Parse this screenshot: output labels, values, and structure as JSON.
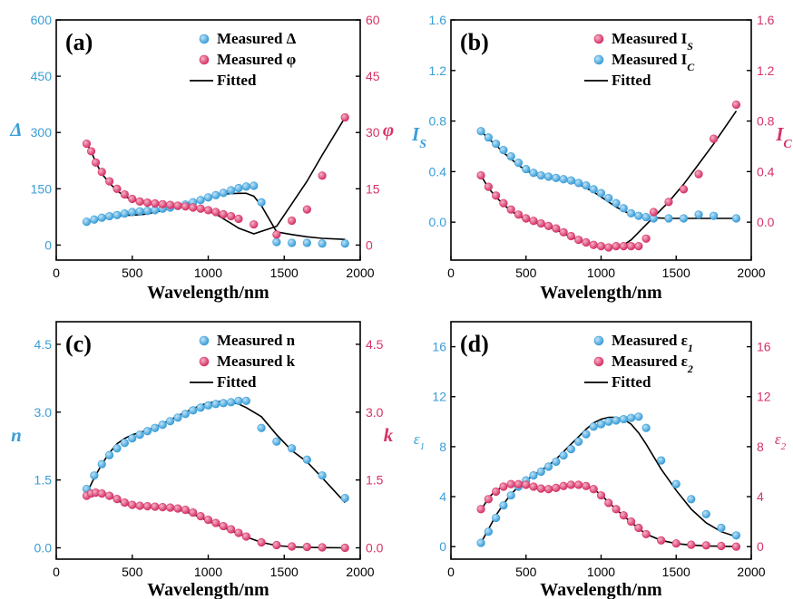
{
  "colors": {
    "blue": "#3a9ed8",
    "pink": "#d63366",
    "fit": "#000000"
  },
  "chart_data": [
    {
      "panel_label": "(a)",
      "type": "scatter",
      "xlabel": "Wavelength/nm",
      "xlim": [
        0,
        2000
      ],
      "x_ticks": [
        "0",
        "500",
        "1000",
        "1500",
        "2000"
      ],
      "ylabel_left": "Δ",
      "ylabel_right": "φ",
      "left_axis": {
        "lim": [
          -40,
          600
        ],
        "ticks": [
          "0",
          "150",
          "300",
          "450",
          "600"
        ]
      },
      "right_axis": {
        "lim": [
          -4,
          60
        ],
        "ticks": [
          "0",
          "15",
          "30",
          "45",
          "60"
        ]
      },
      "legend": [
        {
          "marker": "blue",
          "text": "Measured Δ"
        },
        {
          "marker": "pink",
          "text": "Measured φ"
        },
        {
          "marker": "line",
          "text": "Fitted"
        }
      ],
      "series": [
        {
          "name": "Measured Δ",
          "axis": "left",
          "color": "blue",
          "x": [
            200,
            250,
            300,
            350,
            400,
            450,
            500,
            550,
            600,
            650,
            700,
            750,
            800,
            850,
            900,
            950,
            1000,
            1050,
            1100,
            1150,
            1200,
            1250,
            1300,
            1350,
            1450,
            1550,
            1650,
            1750,
            1900
          ],
          "y": [
            62,
            68,
            73,
            77,
            80,
            84,
            88,
            90,
            91,
            93,
            97,
            100,
            104,
            108,
            114,
            120,
            127,
            133,
            139,
            146,
            152,
            156,
            158,
            114,
            8,
            6,
            6,
            4,
            4
          ],
          "fit_y": [
            62,
            66,
            70,
            74,
            77,
            79,
            80,
            81,
            83,
            88,
            92,
            98,
            103,
            110,
            116,
            122,
            128,
            133,
            136,
            137,
            138,
            138,
            130,
            105,
            35,
            28,
            22,
            18,
            15
          ]
        },
        {
          "name": "Measured φ",
          "axis": "right",
          "color": "pink",
          "x": [
            200,
            230,
            260,
            300,
            350,
            400,
            450,
            500,
            550,
            600,
            650,
            700,
            750,
            800,
            850,
            900,
            950,
            1000,
            1050,
            1100,
            1150,
            1200,
            1300,
            1450,
            1550,
            1650,
            1750,
            1900
          ],
          "y": [
            27,
            25,
            22,
            19.5,
            17,
            15,
            13.5,
            12.3,
            11.6,
            11.3,
            11.1,
            10.9,
            10.7,
            10.5,
            10.3,
            10,
            9.7,
            9.3,
            8.8,
            8.2,
            7.7,
            7,
            5.5,
            2.8,
            6.5,
            9.5,
            18.5,
            34
          ],
          "fit_y": [
            27,
            25,
            22,
            19,
            16.5,
            14.5,
            13,
            12,
            11.5,
            11.3,
            11.1,
            10.9,
            10.7,
            10.5,
            10.3,
            10,
            9.6,
            9,
            8.3,
            7,
            5.8,
            4.5,
            3,
            5,
            11,
            17,
            24,
            34
          ]
        }
      ]
    },
    {
      "panel_label": "(b)",
      "type": "scatter",
      "xlabel": "Wavelength/nm",
      "xlim": [
        0,
        2000
      ],
      "x_ticks": [
        "0",
        "500",
        "1000",
        "1500",
        "2000"
      ],
      "ylabel_left": "I",
      "ylabel_left_sub": "S",
      "ylabel_right": "I",
      "ylabel_right_sub": "C",
      "left_axis": {
        "lim": [
          -0.3,
          1.6
        ],
        "ticks": [
          "0.0",
          "0.4",
          "0.8",
          "1.2",
          "1.6"
        ]
      },
      "right_axis": {
        "lim": [
          -0.3,
          1.6
        ],
        "ticks": [
          "0.0",
          "0.4",
          "0.8",
          "1.2",
          "1.6"
        ]
      },
      "legend": [
        {
          "marker": "pink",
          "text": "Measured I",
          "sub": "S"
        },
        {
          "marker": "blue",
          "text": "Measured I",
          "sub": "C"
        },
        {
          "marker": "line",
          "text": "Fitted"
        }
      ],
      "series": [
        {
          "name": "Measured I_C",
          "axis": "left",
          "color": "blue",
          "x": [
            200,
            250,
            300,
            350,
            400,
            450,
            500,
            550,
            600,
            650,
            700,
            750,
            800,
            850,
            900,
            950,
            1000,
            1050,
            1100,
            1150,
            1200,
            1250,
            1300,
            1350,
            1450,
            1550,
            1650,
            1750,
            1900
          ],
          "y": [
            0.72,
            0.67,
            0.62,
            0.57,
            0.52,
            0.47,
            0.42,
            0.39,
            0.37,
            0.36,
            0.35,
            0.34,
            0.33,
            0.31,
            0.29,
            0.26,
            0.23,
            0.19,
            0.15,
            0.11,
            0.07,
            0.05,
            0.04,
            0.03,
            0.03,
            0.03,
            0.06,
            0.05,
            0.03
          ],
          "fit_y": [
            0.72,
            0.66,
            0.61,
            0.55,
            0.5,
            0.45,
            0.41,
            0.38,
            0.36,
            0.35,
            0.34,
            0.33,
            0.32,
            0.3,
            0.27,
            0.24,
            0.2,
            0.16,
            0.12,
            0.09,
            0.06,
            0.05,
            0.04,
            0.035,
            0.03,
            0.03,
            0.03,
            0.03,
            0.03
          ]
        },
        {
          "name": "Measured I_S",
          "axis": "right",
          "color": "pink",
          "x": [
            200,
            250,
            300,
            350,
            400,
            450,
            500,
            550,
            600,
            650,
            700,
            750,
            800,
            850,
            900,
            950,
            1000,
            1050,
            1100,
            1150,
            1200,
            1250,
            1300,
            1350,
            1450,
            1550,
            1650,
            1750,
            1900
          ],
          "y": [
            0.37,
            0.28,
            0.21,
            0.15,
            0.1,
            0.06,
            0.03,
            0.01,
            -0.01,
            -0.03,
            -0.05,
            -0.08,
            -0.11,
            -0.14,
            -0.16,
            -0.18,
            -0.19,
            -0.2,
            -0.19,
            -0.19,
            -0.19,
            -0.19,
            -0.13,
            0.08,
            0.16,
            0.26,
            0.38,
            0.66,
            0.93
          ],
          "fit_y": [
            0.37,
            0.27,
            0.2,
            0.14,
            0.09,
            0.05,
            0.02,
            0.0,
            -0.02,
            -0.04,
            -0.06,
            -0.09,
            -0.12,
            -0.14,
            -0.16,
            -0.18,
            -0.19,
            -0.19,
            -0.19,
            -0.18,
            -0.14,
            -0.08,
            -0.02,
            0.04,
            0.16,
            0.3,
            0.46,
            0.62,
            0.88
          ]
        }
      ]
    },
    {
      "panel_label": "(c)",
      "type": "scatter",
      "xlabel": "Wavelength/nm",
      "xlim": [
        0,
        2000
      ],
      "x_ticks": [
        "0",
        "500",
        "1000",
        "1500",
        "2000"
      ],
      "ylabel_left": "n",
      "ylabel_right": "k",
      "left_axis": {
        "lim": [
          -0.25,
          5.0
        ],
        "ticks": [
          "0.0",
          "1.5",
          "3.0",
          "4.5"
        ]
      },
      "right_axis": {
        "lim": [
          -0.25,
          5.0
        ],
        "ticks": [
          "0.0",
          "1.5",
          "3.0",
          "4.5"
        ]
      },
      "legend": [
        {
          "marker": "blue",
          "text": "Measured n"
        },
        {
          "marker": "pink",
          "text": "Measured k"
        },
        {
          "marker": "line",
          "text": "Fitted"
        }
      ],
      "series": [
        {
          "name": "Measured n",
          "axis": "left",
          "color": "blue",
          "x": [
            200,
            250,
            300,
            350,
            400,
            450,
            500,
            550,
            600,
            650,
            700,
            750,
            800,
            850,
            900,
            950,
            1000,
            1050,
            1100,
            1150,
            1200,
            1250,
            1350,
            1450,
            1550,
            1650,
            1750,
            1900
          ],
          "y": [
            1.3,
            1.6,
            1.85,
            2.05,
            2.2,
            2.32,
            2.42,
            2.5,
            2.58,
            2.65,
            2.72,
            2.8,
            2.88,
            2.96,
            3.04,
            3.1,
            3.15,
            3.18,
            3.2,
            3.22,
            3.25,
            3.25,
            2.65,
            2.35,
            2.2,
            1.95,
            1.6,
            1.1
          ],
          "fit_y": [
            1.2,
            1.55,
            1.85,
            2.1,
            2.3,
            2.42,
            2.5,
            2.55,
            2.6,
            2.67,
            2.75,
            2.83,
            2.92,
            3.0,
            3.08,
            3.15,
            3.2,
            3.23,
            3.24,
            3.22,
            3.18,
            3.1,
            2.9,
            2.5,
            2.15,
            1.9,
            1.55,
            1.0
          ]
        },
        {
          "name": "Measured k",
          "axis": "right",
          "color": "pink",
          "x": [
            200,
            230,
            260,
            300,
            350,
            400,
            450,
            500,
            550,
            600,
            650,
            700,
            750,
            800,
            850,
            900,
            950,
            1000,
            1050,
            1100,
            1150,
            1200,
            1250,
            1350,
            1450,
            1550,
            1650,
            1750,
            1900
          ],
          "y": [
            1.15,
            1.2,
            1.22,
            1.2,
            1.15,
            1.08,
            1.0,
            0.95,
            0.93,
            0.92,
            0.91,
            0.9,
            0.89,
            0.87,
            0.84,
            0.78,
            0.7,
            0.62,
            0.55,
            0.48,
            0.41,
            0.33,
            0.25,
            0.12,
            0.06,
            0.03,
            0.02,
            0.01,
            0.0
          ],
          "fit_y": [
            1.2,
            1.25,
            1.25,
            1.22,
            1.15,
            1.05,
            0.97,
            0.92,
            0.9,
            0.9,
            0.9,
            0.89,
            0.87,
            0.84,
            0.8,
            0.74,
            0.67,
            0.59,
            0.52,
            0.45,
            0.38,
            0.31,
            0.24,
            0.12,
            0.05,
            0.02,
            0.01,
            0.005,
            0.0
          ]
        }
      ]
    },
    {
      "panel_label": "(d)",
      "type": "scatter",
      "xlabel": "Wavelength/nm",
      "xlim": [
        0,
        2000
      ],
      "x_ticks": [
        "0",
        "500",
        "1000",
        "1500",
        "2000"
      ],
      "ylabel_left": "ε",
      "ylabel_left_sub": "1",
      "ylabel_right": "ε",
      "ylabel_right_sub": "2",
      "left_axis": {
        "lim": [
          -1,
          18
        ],
        "ticks": [
          "0",
          "4",
          "8",
          "12",
          "16"
        ]
      },
      "right_axis": {
        "lim": [
          -1,
          18
        ],
        "ticks": [
          "0",
          "4",
          "8",
          "12",
          "16"
        ]
      },
      "legend": [
        {
          "marker": "blue",
          "text": "Measured ε",
          "sub": "1"
        },
        {
          "marker": "pink",
          "text": "Measured ε",
          "sub": "2"
        },
        {
          "marker": "line",
          "text": "Fitted"
        }
      ],
      "series": [
        {
          "name": "Measured ε1",
          "axis": "left",
          "color": "blue",
          "x": [
            200,
            250,
            300,
            350,
            400,
            450,
            500,
            550,
            600,
            650,
            700,
            750,
            800,
            850,
            900,
            950,
            1000,
            1050,
            1100,
            1150,
            1200,
            1250,
            1300,
            1400,
            1500,
            1600,
            1700,
            1800,
            1900
          ],
          "y": [
            0.3,
            1.2,
            2.3,
            3.3,
            4.1,
            4.8,
            5.3,
            5.7,
            6.0,
            6.4,
            6.8,
            7.3,
            7.8,
            8.4,
            9.0,
            9.6,
            9.8,
            10.0,
            10.1,
            10.2,
            10.3,
            10.4,
            9.5,
            6.9,
            5.0,
            3.8,
            2.6,
            1.5,
            0.9
          ],
          "fit_y": [
            0.3,
            1.4,
            2.5,
            3.4,
            4.2,
            4.8,
            5.3,
            5.7,
            6.1,
            6.5,
            7.0,
            7.6,
            8.2,
            8.8,
            9.4,
            9.9,
            10.2,
            10.35,
            10.35,
            10.2,
            9.8,
            9.1,
            8.2,
            6.2,
            4.5,
            3.0,
            1.9,
            1.2,
            0.8
          ]
        },
        {
          "name": "Measured ε2",
          "axis": "right",
          "color": "pink",
          "x": [
            200,
            250,
            300,
            350,
            400,
            450,
            500,
            550,
            600,
            650,
            700,
            750,
            800,
            850,
            900,
            950,
            1000,
            1050,
            1100,
            1150,
            1200,
            1250,
            1300,
            1400,
            1500,
            1600,
            1700,
            1800,
            1900
          ],
          "y": [
            3.0,
            3.8,
            4.4,
            4.8,
            5.0,
            5.0,
            4.95,
            4.8,
            4.65,
            4.6,
            4.7,
            4.85,
            4.95,
            4.95,
            4.85,
            4.6,
            4.1,
            3.5,
            3.0,
            2.5,
            2.0,
            1.5,
            1.0,
            0.5,
            0.25,
            0.15,
            0.1,
            0.05,
            0.0
          ],
          "fit_y": [
            2.9,
            3.9,
            4.5,
            4.8,
            4.95,
            4.95,
            4.85,
            4.7,
            4.55,
            4.5,
            4.6,
            4.8,
            4.9,
            4.95,
            4.85,
            4.6,
            4.15,
            3.55,
            3.0,
            2.45,
            1.95,
            1.45,
            1.0,
            0.5,
            0.25,
            0.12,
            0.06,
            0.03,
            0.0
          ]
        }
      ]
    }
  ]
}
